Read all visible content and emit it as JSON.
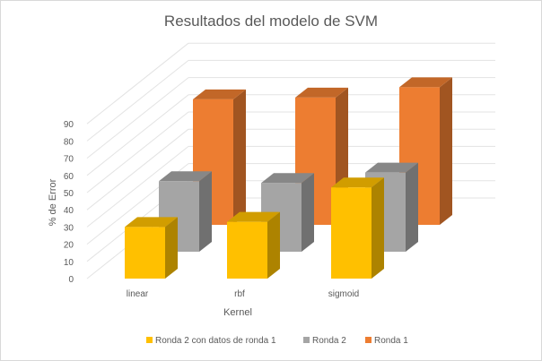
{
  "chart_data": {
    "type": "bar",
    "title": "Resultados del modelo de SVM",
    "xlabel": "Kernel",
    "ylabel": "% de Error",
    "categories": [
      "linear",
      "rbf",
      "sigmoid"
    ],
    "yticks": [
      0,
      10,
      20,
      30,
      40,
      50,
      60,
      70,
      80,
      90
    ],
    "ylim": [
      0,
      90
    ],
    "grid": true,
    "legend_position": "bottom",
    "series": [
      {
        "name": "Ronda 2 con datos de ronda 1",
        "values": [
          30,
          33,
          53
        ],
        "color": "#FFC000"
      },
      {
        "name": "Ronda 2",
        "values": [
          41,
          40,
          46
        ],
        "color": "#A5A5A5"
      },
      {
        "name": "Ronda 1",
        "values": [
          73,
          74,
          80
        ],
        "color": "#ED7D31"
      }
    ]
  }
}
